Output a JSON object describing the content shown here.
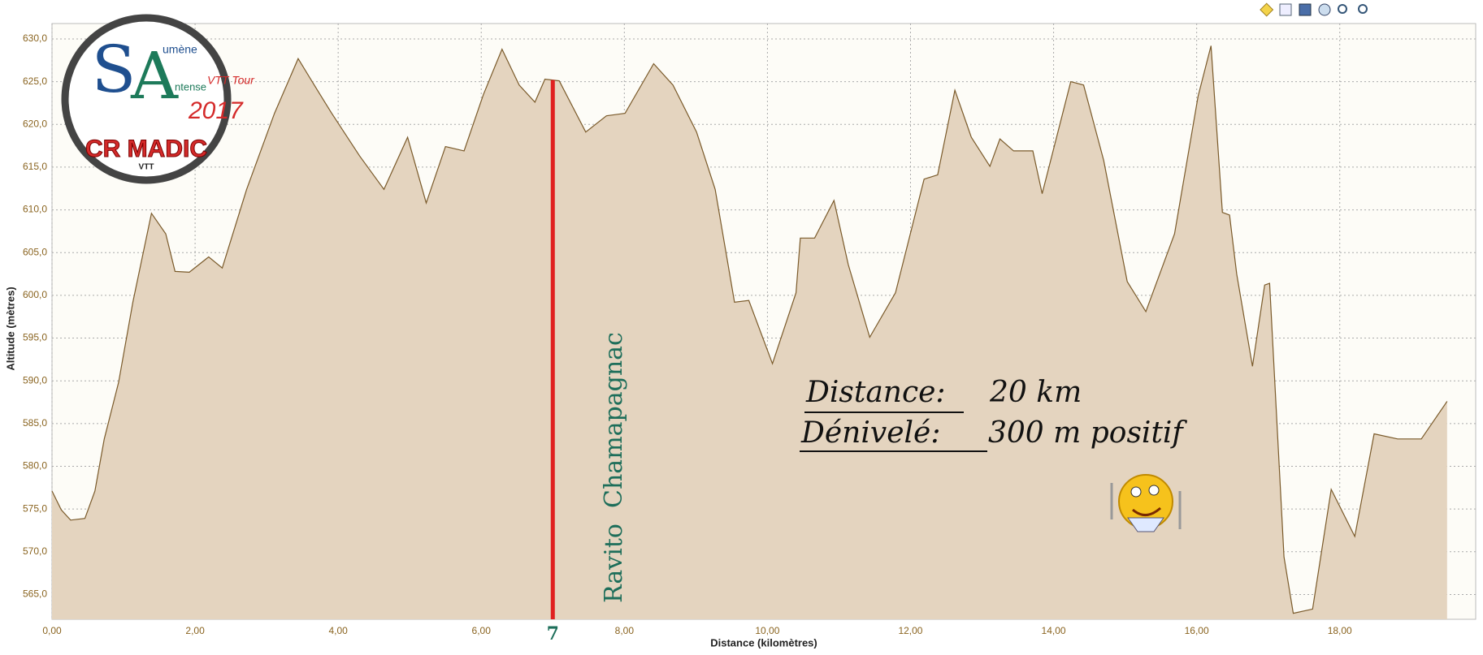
{
  "chart_data": {
    "type": "area",
    "xlabel": "Distance (kilomètres)",
    "ylabel": "Altitude (mètres)",
    "x": [
      0,
      0.13,
      0.26,
      0.46,
      0.6,
      0.73,
      0.93,
      1.13,
      1.39,
      1.59,
      1.72,
      1.92,
      2.19,
      2.38,
      2.72,
      3.11,
      3.44,
      3.71,
      3.91,
      4.3,
      4.64,
      4.97,
      5.23,
      5.5,
      5.76,
      6.03,
      6.29,
      6.53,
      6.75,
      6.89,
      7.09,
      7.46,
      7.75,
      8.01,
      8.41,
      8.68,
      9.01,
      9.27,
      9.54,
      9.74,
      10.07,
      10.4,
      10.46,
      10.66,
      10.93,
      11.13,
      11.43,
      11.79,
      12.19,
      12.38,
      12.62,
      12.85,
      13.11,
      13.25,
      13.44,
      13.71,
      13.84,
      14.24,
      14.42,
      14.7,
      15.03,
      15.29,
      15.69,
      16.02,
      16.2,
      16.36,
      16.46,
      16.56,
      16.78,
      16.95,
      17.02,
      17.22,
      17.35,
      17.62,
      17.88,
      18.21,
      18.48,
      18.81,
      19.14,
      19.5
    ],
    "values": [
      577.1,
      574.9,
      573.7,
      573.9,
      577.1,
      583.2,
      589.8,
      599.2,
      609.6,
      607.2,
      602.8,
      602.7,
      604.5,
      603.2,
      612.4,
      621.3,
      627.7,
      624.0,
      621.3,
      616.3,
      612.4,
      618.5,
      610.8,
      617.4,
      616.9,
      623.5,
      628.8,
      624.6,
      622.6,
      625.3,
      625.1,
      619.1,
      621.0,
      621.3,
      627.1,
      624.6,
      619.1,
      612.4,
      599.2,
      599.4,
      592.0,
      600.3,
      606.7,
      606.7,
      611.1,
      603.6,
      595.1,
      600.3,
      613.6,
      614.1,
      624.0,
      618.5,
      615.1,
      618.3,
      616.9,
      616.9,
      611.9,
      625.0,
      624.6,
      615.8,
      601.6,
      598.1,
      607.2,
      623.3,
      629.2,
      609.7,
      609.4,
      602.5,
      591.7,
      601.2,
      601.4,
      569.4,
      562.8,
      563.3,
      577.3,
      571.8,
      583.8,
      583.2,
      583.2,
      587.6
    ],
    "color": "#e4d4bf",
    "line_color": "#7a5a2a",
    "xlim": [
      0,
      19.9
    ],
    "ylim": [
      562.1,
      631.8
    ],
    "xticks": [
      {
        "value": 0,
        "label": "0,00"
      },
      {
        "value": 2,
        "label": "2,00"
      },
      {
        "value": 4,
        "label": "4,00"
      },
      {
        "value": 6,
        "label": "6,00"
      },
      {
        "value": 8,
        "label": "8,00"
      },
      {
        "value": 10,
        "label": "10,00"
      },
      {
        "value": 12,
        "label": "12,00"
      },
      {
        "value": 14,
        "label": "14,00"
      },
      {
        "value": 16,
        "label": "16,00"
      },
      {
        "value": 18,
        "label": "18,00"
      }
    ],
    "yticks": [
      {
        "value": 565,
        "label": "565,0"
      },
      {
        "value": 570,
        "label": "570,0"
      },
      {
        "value": 575,
        "label": "575,0"
      },
      {
        "value": 580,
        "label": "580,0"
      },
      {
        "value": 585,
        "label": "585,0"
      },
      {
        "value": 590,
        "label": "590,0"
      },
      {
        "value": 595,
        "label": "595,0"
      },
      {
        "value": 600,
        "label": "600,0"
      },
      {
        "value": 605,
        "label": "605,0"
      },
      {
        "value": 610,
        "label": "610,0"
      },
      {
        "value": 615,
        "label": "615,0"
      },
      {
        "value": 620,
        "label": "620,0"
      },
      {
        "value": 625,
        "label": "625,0"
      },
      {
        "value": 630,
        "label": "630,0"
      }
    ],
    "grid": true,
    "marker": {
      "x": 7,
      "label": "Ravito  Chamapagnac",
      "color": "#e02020"
    },
    "annotations": [
      "Distance:",
      "20 km",
      "Dénivelé:",
      "300 m positif"
    ]
  },
  "logo": {
    "texts": [
      "S",
      "umène",
      "A",
      "ntense",
      "VTT Tour",
      "2017",
      "CR MADIC",
      "VTT"
    ]
  }
}
